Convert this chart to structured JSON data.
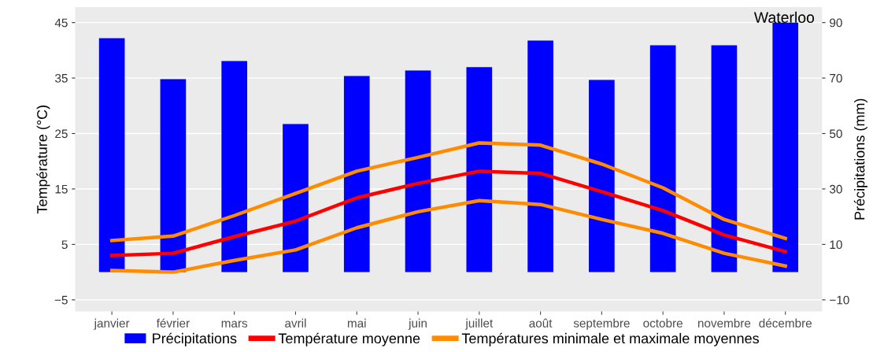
{
  "chart_data": {
    "type": "line",
    "title": "Waterloo",
    "ylabel": "Température (°C)",
    "y2label": "Précipitations (mm)",
    "categories": [
      "janvier",
      "février",
      "mars",
      "avril",
      "mai",
      "juin",
      "juillet",
      "août",
      "septembre",
      "octobre",
      "novembre",
      "décembre"
    ],
    "series": [
      {
        "name": "Précipitations",
        "type": "bar",
        "axis": "y2",
        "color": "#0000ff",
        "values": [
          84.4,
          69.6,
          76.1,
          53.4,
          70.7,
          72.7,
          73.9,
          83.5,
          69.3,
          81.8,
          81.8,
          90
        ]
      },
      {
        "name": "Température moyenne",
        "color": "#ff0000",
        "values": [
          3.0,
          3.4,
          6.4,
          9.2,
          13.4,
          16.0,
          18.2,
          17.8,
          14.5,
          11.1,
          6.7,
          3.7
        ]
      },
      {
        "name": "Températures minimale et maximale moyennes",
        "color": "#ff8c00",
        "values": [
          5.7,
          6.5,
          10.2,
          14.2,
          18.2,
          20.7,
          23.3,
          22.9,
          19.5,
          15.2,
          9.5,
          6.1
        ]
      },
      {
        "color": "#ff8c00",
        "values": [
          0.3,
          0.0,
          2.1,
          4.0,
          8.0,
          10.9,
          12.9,
          12.2,
          9.5,
          7.0,
          3.4,
          1.1
        ]
      }
    ],
    "ylim": [
      -7.1,
      47.8
    ],
    "yticks": [
      -5,
      5,
      15,
      25,
      35,
      45
    ],
    "y2lim": [
      -14.2,
      95.6
    ],
    "y2ticks": [
      -10,
      10,
      30,
      50,
      70,
      90
    ],
    "grid": "y",
    "legend": "bottom",
    "marker": "none",
    "line_style": "solid"
  }
}
